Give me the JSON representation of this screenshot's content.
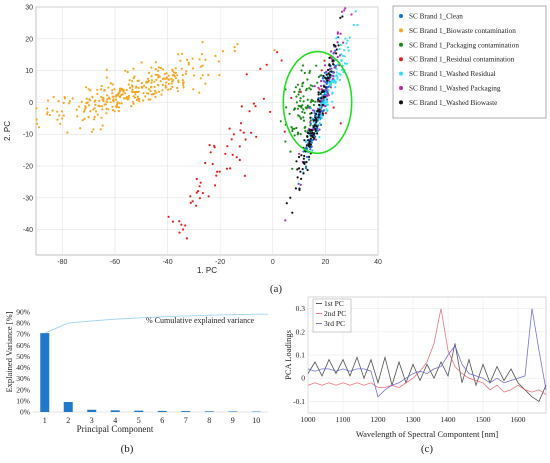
{
  "chart_data": [
    {
      "type": "scatter",
      "panel": "(a)",
      "xlabel": "1. PC",
      "ylabel": "2. PC",
      "xlim": [
        -90,
        40
      ],
      "ylim": [
        -48,
        30
      ],
      "xticks": [
        -80,
        -60,
        -40,
        -20,
        0,
        20,
        40
      ],
      "yticks": [
        30,
        20,
        10,
        0,
        -10,
        -20,
        -30,
        -40
      ],
      "grid": true,
      "legend_position": "right",
      "circle": {
        "color": "#22dd22",
        "cx": 17,
        "cy": 0,
        "rx": 13,
        "ry": 10
      },
      "series": [
        {
          "name": "SC Brand 1_Clean",
          "color": "#1a6fd1",
          "cluster": {
            "cx": 18,
            "cy": -2,
            "sx": 1.6,
            "sy": 9,
            "slope": 3.0,
            "n": 180
          }
        },
        {
          "name": "SC Brand 1_Biowaste contamination",
          "color": "#f5a623",
          "cluster": {
            "cx": -55,
            "cy": 3,
            "sx": 17,
            "sy": 3,
            "slope": 0.27,
            "n": 320
          }
        },
        {
          "name": "SC Brand 1_Packaging contamination",
          "color": "#1a8a1a",
          "cluster": {
            "cx": 11,
            "cy": -3,
            "sx": 3.2,
            "sy": 6,
            "slope": 0.6,
            "n": 90
          }
        },
        {
          "name": "SC Brand 1_Residual contamination",
          "color": "#e02020",
          "cluster": {
            "cx": -20,
            "cy": -18,
            "sx": 9,
            "sy": 12,
            "slope": -0.5,
            "n": 70
          }
        },
        {
          "name": "SC Brand 1_Washed Residual",
          "color": "#33e0f0",
          "cluster": {
            "cx": 22,
            "cy": 5,
            "sx": 2.5,
            "sy": 9,
            "slope": 2.5,
            "n": 110
          }
        },
        {
          "name": "SC Brand 1_Washed Packaging",
          "color": "#b030b0",
          "cluster": {
            "cx": 21,
            "cy": 8,
            "sx": 2.4,
            "sy": 12,
            "slope": 3.0,
            "n": 70
          }
        },
        {
          "name": "SC Brand 1_Washed Biowaste",
          "color": "#111111",
          "cluster": {
            "cx": 16,
            "cy": -6,
            "sx": 1.6,
            "sy": 12,
            "slope": 3.0,
            "n": 120
          }
        }
      ]
    },
    {
      "type": "bar",
      "panel": "(b)",
      "xlabel": "Principal Component",
      "ylabel": "Explained Variance [%]",
      "categories": [
        "1",
        "2",
        "3",
        "4",
        "5",
        "6",
        "7",
        "8",
        "9",
        "10"
      ],
      "values": [
        71,
        9,
        2,
        1.5,
        1.2,
        1,
        0.8,
        0.6,
        0.5,
        0.4
      ],
      "cumulative": [
        71,
        80,
        82,
        83.5,
        84.7,
        85.7,
        86.5,
        87.1,
        87.6,
        88
      ],
      "cumulative_label": "% Cumulative explained variance",
      "ylim": [
        0,
        90
      ],
      "yticks": [
        "90%",
        "80%",
        "70%",
        "60%",
        "50%",
        "40%",
        "30%",
        "20%",
        "10%",
        "0%"
      ],
      "bar_color": "#1f78c8",
      "line_color": "#9fd4f0"
    },
    {
      "type": "line",
      "panel": "(c)",
      "xlabel": "Wavelength of Spectral Compontent [nm]",
      "ylabel": "PCA Loadings",
      "xlim": [
        1000,
        1680
      ],
      "ylim": [
        -0.15,
        0.35
      ],
      "xticks": [
        1000,
        1100,
        1200,
        1300,
        1400,
        1500,
        1600
      ],
      "yticks": [
        0.3,
        0.2,
        0.1,
        0,
        -0.1
      ],
      "legend_position": "top-left",
      "series": [
        {
          "name": "1st PC",
          "color": "#333333",
          "x": [
            1000,
            1020,
            1040,
            1060,
            1080,
            1100,
            1120,
            1140,
            1160,
            1180,
            1200,
            1220,
            1240,
            1260,
            1280,
            1300,
            1320,
            1340,
            1360,
            1380,
            1400,
            1420,
            1440,
            1460,
            1480,
            1500,
            1520,
            1540,
            1560,
            1580,
            1600,
            1620,
            1640,
            1660,
            1680
          ],
          "values": [
            0.02,
            0.07,
            0.01,
            0.08,
            0.02,
            0.08,
            0.01,
            0.09,
            0.0,
            0.08,
            -0.02,
            0.09,
            -0.03,
            0.07,
            -0.02,
            0.06,
            -0.01,
            0.06,
            0.0,
            0.07,
            0.01,
            0.15,
            -0.02,
            0.08,
            -0.03,
            0.06,
            -0.02,
            0.05,
            -0.01,
            0.04,
            -0.02,
            -0.05,
            -0.08,
            -0.1,
            -0.03
          ]
        },
        {
          "name": "2nd PC",
          "color": "#e85a6a",
          "x": [
            1000,
            1020,
            1040,
            1060,
            1080,
            1100,
            1120,
            1140,
            1160,
            1180,
            1200,
            1220,
            1240,
            1260,
            1280,
            1300,
            1320,
            1340,
            1360,
            1380,
            1400,
            1420,
            1440,
            1460,
            1480,
            1500,
            1520,
            1540,
            1560,
            1580,
            1600,
            1620,
            1640,
            1660,
            1680
          ],
          "values": [
            -0.03,
            -0.02,
            -0.03,
            -0.02,
            -0.03,
            -0.02,
            -0.03,
            -0.02,
            -0.03,
            -0.02,
            -0.04,
            -0.04,
            -0.03,
            -0.04,
            -0.02,
            0.0,
            0.03,
            0.07,
            0.15,
            0.3,
            0.12,
            0.05,
            0.02,
            0.0,
            -0.01,
            -0.02,
            -0.05,
            -0.03,
            -0.06,
            -0.05,
            -0.03,
            -0.05,
            -0.06,
            -0.05,
            -0.07
          ]
        },
        {
          "name": "3rd PC",
          "color": "#5a5ad0",
          "x": [
            1000,
            1020,
            1040,
            1060,
            1080,
            1100,
            1120,
            1140,
            1160,
            1180,
            1200,
            1220,
            1240,
            1260,
            1280,
            1300,
            1320,
            1340,
            1360,
            1380,
            1400,
            1420,
            1440,
            1460,
            1480,
            1500,
            1520,
            1540,
            1560,
            1580,
            1600,
            1620,
            1640,
            1660,
            1680
          ],
          "values": [
            0.04,
            0.03,
            0.04,
            0.04,
            0.03,
            0.04,
            0.03,
            0.04,
            0.04,
            0.03,
            -0.08,
            -0.05,
            -0.03,
            -0.02,
            0.0,
            0.02,
            0.03,
            0.02,
            0.04,
            0.05,
            0.1,
            0.14,
            0.06,
            0.02,
            0.01,
            0.0,
            -0.02,
            0.0,
            -0.02,
            -0.01,
            0.0,
            0.01,
            0.3,
            0.12,
            -0.05
          ]
        }
      ]
    }
  ]
}
